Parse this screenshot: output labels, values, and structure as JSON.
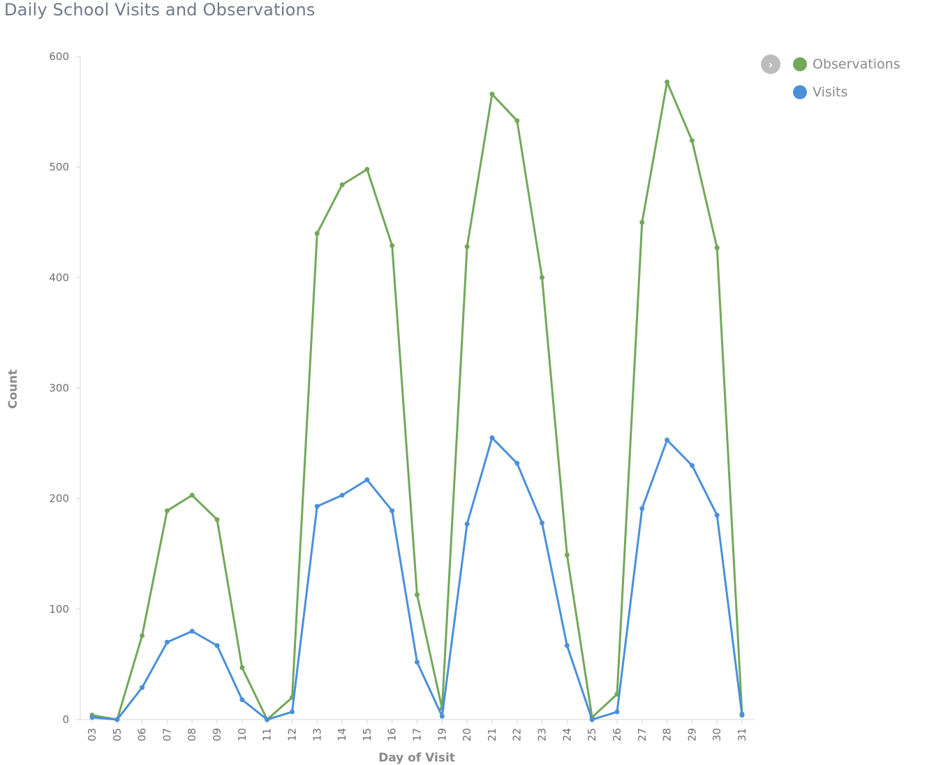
{
  "colors": {
    "observations": "#72a859",
    "visits": "#4a90d9",
    "axis": "#d4d4d4",
    "tick_text": "#6f6f6f"
  },
  "legend": {
    "toggle_icon": "chevron-right-icon",
    "items": [
      {
        "label": "Observations"
      },
      {
        "label": "Visits"
      }
    ]
  },
  "chart_data": {
    "type": "line",
    "title": "Daily School Visits and Observations",
    "xlabel": "Day of Visit",
    "ylabel": "Count",
    "ylim": [
      0,
      600
    ],
    "yticks": [
      0,
      100,
      200,
      300,
      400,
      500,
      600
    ],
    "grid": false,
    "legend_position": "top-right",
    "categories": [
      "03",
      "05",
      "06",
      "07",
      "08",
      "09",
      "10",
      "11",
      "12",
      "13",
      "14",
      "15",
      "16",
      "17",
      "19",
      "20",
      "21",
      "22",
      "23",
      "24",
      "25",
      "26",
      "27",
      "28",
      "29",
      "30",
      "31"
    ],
    "series": [
      {
        "name": "Observations",
        "values": [
          4,
          0,
          76,
          189,
          203,
          181,
          47,
          0,
          20,
          440,
          484,
          498,
          429,
          113,
          10,
          428,
          566,
          542,
          400,
          149,
          2,
          23,
          450,
          577,
          524,
          427,
          5
        ]
      },
      {
        "name": "Visits",
        "values": [
          2,
          0,
          29,
          70,
          80,
          67,
          18,
          0,
          7,
          193,
          203,
          217,
          189,
          52,
          3,
          177,
          255,
          232,
          178,
          67,
          0,
          7,
          191,
          253,
          230,
          185,
          4
        ]
      }
    ]
  }
}
